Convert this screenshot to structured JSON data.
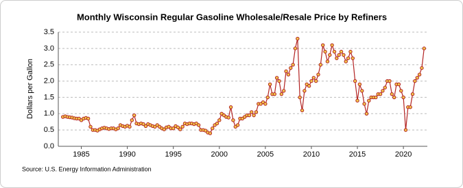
{
  "chart_data": {
    "type": "line",
    "title": "Monthly Wisconsin Regular Gasoline Wholesale/Resale Price by Refiners",
    "y_label": "Dollars per Gallon",
    "source": "Source: U.S. Energy Information Administration",
    "x": [
      1983,
      1983.25,
      1983.5,
      1983.75,
      1984,
      1984.25,
      1984.5,
      1984.75,
      1985,
      1985.25,
      1985.5,
      1985.75,
      1986,
      1986.25,
      1986.5,
      1986.75,
      1987,
      1987.25,
      1987.5,
      1987.75,
      1988,
      1988.25,
      1988.5,
      1988.75,
      1989,
      1989.25,
      1989.5,
      1989.75,
      1990,
      1990.25,
      1990.5,
      1990.75,
      1991,
      1991.25,
      1991.5,
      1991.75,
      1992,
      1992.25,
      1992.5,
      1992.75,
      1993,
      1993.25,
      1993.5,
      1993.75,
      1994,
      1994.25,
      1994.5,
      1994.75,
      1995,
      1995.25,
      1995.5,
      1995.75,
      1996,
      1996.25,
      1996.5,
      1996.75,
      1997,
      1997.25,
      1997.5,
      1997.75,
      1998,
      1998.25,
      1998.5,
      1998.75,
      1999,
      1999.25,
      1999.5,
      1999.75,
      2000,
      2000.25,
      2000.5,
      2000.75,
      2001,
      2001.25,
      2001.5,
      2001.75,
      2002,
      2002.25,
      2002.5,
      2002.75,
      2003,
      2003.25,
      2003.5,
      2003.75,
      2004,
      2004.25,
      2004.5,
      2004.75,
      2005,
      2005.25,
      2005.5,
      2005.75,
      2006,
      2006.25,
      2006.5,
      2006.75,
      2007,
      2007.25,
      2007.5,
      2007.75,
      2008,
      2008.25,
      2008.5,
      2008.75,
      2009,
      2009.25,
      2009.5,
      2009.75,
      2010,
      2010.25,
      2010.5,
      2010.75,
      2011,
      2011.25,
      2011.5,
      2011.75,
      2012,
      2012.25,
      2012.5,
      2012.75,
      2013,
      2013.25,
      2013.5,
      2013.75,
      2014,
      2014.25,
      2014.5,
      2014.75,
      2015,
      2015.25,
      2015.5,
      2015.75,
      2016,
      2016.25,
      2016.5,
      2016.75,
      2017,
      2017.25,
      2017.5,
      2017.75,
      2018,
      2018.25,
      2018.5,
      2018.75,
      2019,
      2019.25,
      2019.5,
      2019.75,
      2020,
      2020.25,
      2020.5,
      2020.75,
      2021,
      2021.25,
      2021.5,
      2021.75,
      2022,
      2022.25
    ],
    "series": [
      {
        "name": "Wisconsin Regular Gasoline Wholesale/Resale Price by Refiners",
        "color": "#b22222",
        "values": [
          0.9,
          0.92,
          0.9,
          0.89,
          0.88,
          0.86,
          0.85,
          0.85,
          0.8,
          0.85,
          0.87,
          0.85,
          0.6,
          0.5,
          0.5,
          0.48,
          0.52,
          0.55,
          0.57,
          0.55,
          0.53,
          0.55,
          0.55,
          0.52,
          0.55,
          0.65,
          0.62,
          0.6,
          0.63,
          0.6,
          0.8,
          0.95,
          0.7,
          0.68,
          0.7,
          0.68,
          0.62,
          0.68,
          0.65,
          0.62,
          0.6,
          0.65,
          0.6,
          0.55,
          0.52,
          0.58,
          0.6,
          0.55,
          0.55,
          0.62,
          0.58,
          0.52,
          0.6,
          0.7,
          0.68,
          0.7,
          0.7,
          0.68,
          0.7,
          0.65,
          0.5,
          0.5,
          0.48,
          0.42,
          0.4,
          0.55,
          0.65,
          0.7,
          0.8,
          1.0,
          0.95,
          0.9,
          0.88,
          1.2,
          0.8,
          0.6,
          0.65,
          0.85,
          0.85,
          0.9,
          0.95,
          0.95,
          1.05,
          0.95,
          1.05,
          1.3,
          1.3,
          1.35,
          1.3,
          1.5,
          1.9,
          1.6,
          1.6,
          2.1,
          2.0,
          1.6,
          1.7,
          2.3,
          2.2,
          2.4,
          2.5,
          3.0,
          3.3,
          1.5,
          1.1,
          1.7,
          1.9,
          1.85,
          2.0,
          2.1,
          2.0,
          2.2,
          2.5,
          3.1,
          2.9,
          2.6,
          2.8,
          3.1,
          2.9,
          2.7,
          2.8,
          2.9,
          2.8,
          2.6,
          2.7,
          2.9,
          2.7,
          2.0,
          1.4,
          1.9,
          1.7,
          1.3,
          1.0,
          1.4,
          1.5,
          1.5,
          1.5,
          1.6,
          1.6,
          1.7,
          1.8,
          2.0,
          2.0,
          1.6,
          1.5,
          1.9,
          1.9,
          1.7,
          1.5,
          0.5,
          1.2,
          1.2,
          1.6,
          2.0,
          2.1,
          2.2,
          2.4,
          3.0
        ]
      }
    ],
    "xlim": [
      1982.5,
      2022.6
    ],
    "xticks": [
      1985,
      1990,
      1995,
      2000,
      2005,
      2010,
      2015,
      2020
    ],
    "ylim": [
      0,
      3.5
    ],
    "yticks": [
      {
        "value": 0,
        "label": "0.0"
      },
      {
        "value": 0.5,
        "label": "0.5"
      },
      {
        "value": 1,
        "label": "1.0"
      },
      {
        "value": 1.5,
        "label": "1.5"
      },
      {
        "value": 2,
        "label": "2.0"
      },
      {
        "value": 2.5,
        "label": "2.5"
      },
      {
        "value": 3,
        "label": "3.0"
      },
      {
        "value": 3.5,
        "label": "3.5"
      }
    ],
    "grid": true
  }
}
